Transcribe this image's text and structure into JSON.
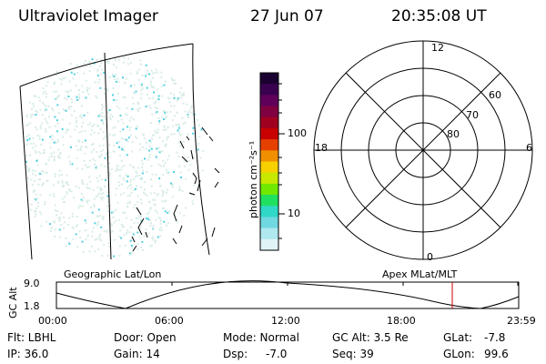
{
  "header": {
    "title": "Ultraviolet Imager",
    "date": "27 Jun 07",
    "time": "20:35:08 UT"
  },
  "colorbar": {
    "unit_label": "photon cm⁻²s⁻¹",
    "ticks": [
      "100",
      "10"
    ],
    "colors": [
      "#1a0030",
      "#3a0050",
      "#60005a",
      "#800040",
      "#a00020",
      "#c80000",
      "#e64000",
      "#f09000",
      "#f7d000",
      "#c8e800",
      "#70e800",
      "#20e060",
      "#30d8c8",
      "#70d8e0",
      "#b0e8f0",
      "#e0f4f8"
    ]
  },
  "polar_plot": {
    "mlt_labels": {
      "top": "12",
      "right": "6",
      "left": "18",
      "bottom": "0"
    },
    "mlat_labels": [
      "60",
      "70",
      "80"
    ]
  },
  "timeline": {
    "left_title": "Geographic Lat/Lon",
    "right_title": "Apex MLat/MLT",
    "ylabel": "GC Alt",
    "yticks": [
      "9.0",
      "1.8"
    ],
    "xticks": [
      "00:00",
      "06:00",
      "12:00",
      "18:00",
      "23:59"
    ]
  },
  "info": {
    "filter": "Flt: LBHL",
    "door": "Door: Open",
    "mode": "Mode: Normal",
    "gc_alt": "GC Alt: 3.5 Re",
    "glat_label": "GLat:",
    "glat_value": "-7.8",
    "ip": "IP: 36.0",
    "gain": "Gain: 14",
    "dsp_label": "Dsp:",
    "dsp_value": "-7.0",
    "seq": "Seq: 39",
    "glon_label": "GLon:",
    "glon_value": "99.6"
  },
  "theme": {
    "line": "#000000",
    "marker": "#cc0000",
    "dot_light": "#d8ece6",
    "dot_cyan": "#50d0e0"
  }
}
